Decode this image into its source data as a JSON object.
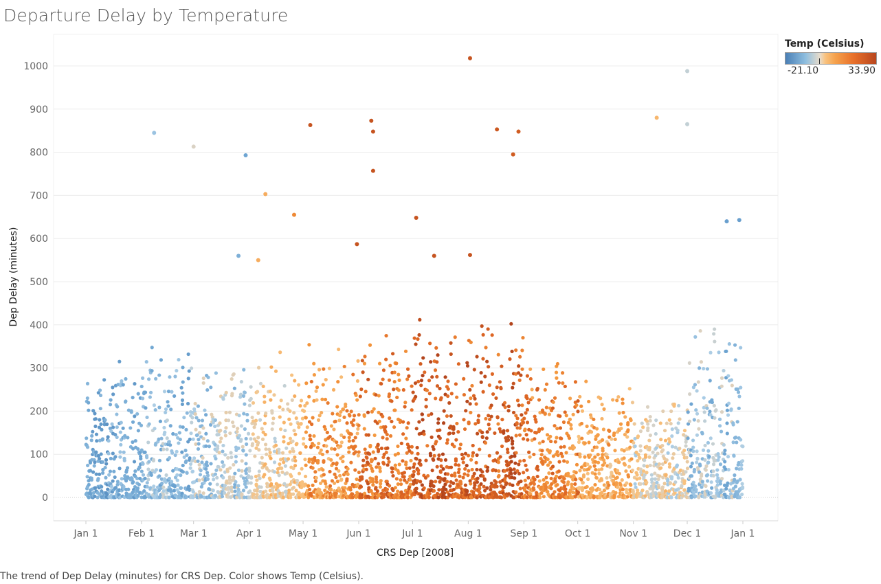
{
  "title": "Departure Delay by Temperature",
  "caption": "The trend of Dep Delay (minutes) for CRS Dep.  Color shows Temp (Celsius).",
  "legend": {
    "title": "Temp (Celsius)",
    "min_label": "-21.10",
    "max_label": "33.90"
  },
  "colors": {
    "cold": "#4a7fb5",
    "cool": "#8ebedf",
    "mild": "#e3d6c4",
    "warm": "#f5a14c",
    "hot": "#b8461e",
    "grid": "#ececec",
    "axis_text": "#666666"
  },
  "chart_data": {
    "type": "scatter",
    "title": "Departure Delay by Temperature",
    "xlabel": "CRS Dep [2008]",
    "ylabel": "Dep Delay (minutes)",
    "ylim": [
      -55,
      1060
    ],
    "yticks": [
      0,
      100,
      200,
      300,
      400,
      500,
      600,
      700,
      800,
      900,
      1000
    ],
    "xticks": [
      "Jan 1",
      "Feb 1",
      "Mar 1",
      "Apr 1",
      "May 1",
      "Jun 1",
      "Jul 1",
      "Aug 1",
      "Sep 1",
      "Oct 1",
      "Nov 1",
      "Dec 1",
      "Jan 1"
    ],
    "grid": true,
    "color_by": "Temp (Celsius)",
    "monthly_temp": [
      -8,
      -4,
      0,
      8,
      17,
      24,
      28,
      27,
      21,
      14,
      6,
      -2
    ],
    "monthly_typical_max_delay": [
      260,
      300,
      250,
      280,
      290,
      330,
      340,
      330,
      250,
      220,
      200,
      330
    ],
    "notable_points": [
      {
        "x": "2008-08-02",
        "y": 1018,
        "temp": 30
      },
      {
        "x": "2008-12-01",
        "y": 988,
        "temp": 2
      },
      {
        "x": "2008-11-14",
        "y": 880,
        "temp": 12
      },
      {
        "x": "2008-06-08",
        "y": 873,
        "temp": 30
      },
      {
        "x": "2008-12-01",
        "y": 865,
        "temp": 2
      },
      {
        "x": "2008-05-05",
        "y": 863,
        "temp": 30
      },
      {
        "x": "2008-08-17",
        "y": 853,
        "temp": 29
      },
      {
        "x": "2008-06-09",
        "y": 848,
        "temp": 30
      },
      {
        "x": "2008-08-29",
        "y": 848,
        "temp": 28
      },
      {
        "x": "2008-02-08",
        "y": 845,
        "temp": -2
      },
      {
        "x": "2008-03-01",
        "y": 813,
        "temp": 4
      },
      {
        "x": "2008-08-26",
        "y": 795,
        "temp": 28
      },
      {
        "x": "2008-03-30",
        "y": 793,
        "temp": -8
      },
      {
        "x": "2008-06-09",
        "y": 757,
        "temp": 30
      },
      {
        "x": "2008-04-10",
        "y": 703,
        "temp": 14
      },
      {
        "x": "2008-04-26",
        "y": 655,
        "temp": 20
      },
      {
        "x": "2008-07-03",
        "y": 648,
        "temp": 30
      },
      {
        "x": "2008-12-30",
        "y": 643,
        "temp": -10
      },
      {
        "x": "2008-12-23",
        "y": 640,
        "temp": -10
      },
      {
        "x": "2008-05-31",
        "y": 587,
        "temp": 30
      },
      {
        "x": "2008-08-02",
        "y": 562,
        "temp": 30
      },
      {
        "x": "2008-03-26",
        "y": 560,
        "temp": -6
      },
      {
        "x": "2008-07-13",
        "y": 560,
        "temp": 30
      },
      {
        "x": "2008-04-06",
        "y": 550,
        "temp": 14
      }
    ]
  }
}
